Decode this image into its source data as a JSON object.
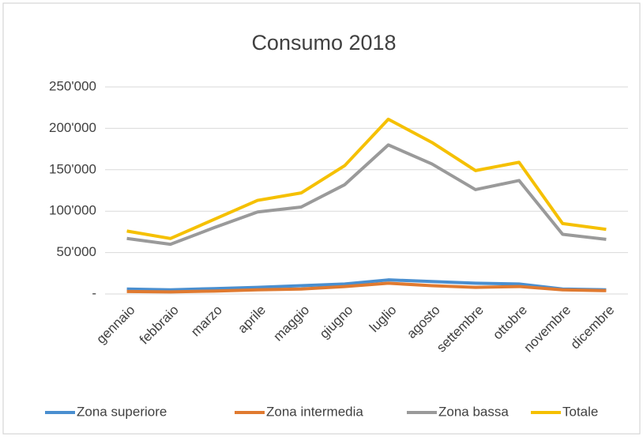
{
  "chart_data": {
    "type": "line",
    "title": "Consumo 2018",
    "categories": [
      "gennaio",
      "febbraio",
      "marzo",
      "aprile",
      "maggio",
      "giugno",
      "luglio",
      "agosto",
      "settembre",
      "ottobre",
      "novembre",
      "dicembre"
    ],
    "series": [
      {
        "name": "Zona superiore",
        "color": "#4a8fd0",
        "values": [
          6000,
          5000,
          6500,
          8000,
          10000,
          12000,
          17000,
          15000,
          13000,
          12000,
          6000,
          5000
        ]
      },
      {
        "name": "Zona intermedia",
        "color": "#e07a30",
        "values": [
          3000,
          2500,
          3500,
          5000,
          6000,
          9000,
          13000,
          10000,
          8000,
          9000,
          5000,
          4000
        ]
      },
      {
        "name": "Zona bassa",
        "color": "#9a9a9a",
        "values": [
          67000,
          60000,
          80000,
          99000,
          105000,
          132000,
          180000,
          157000,
          126000,
          137000,
          72000,
          66000
        ]
      },
      {
        "name": "Totale",
        "color": "#f5c000",
        "values": [
          76000,
          67000,
          90000,
          113000,
          122000,
          155000,
          211000,
          183000,
          149000,
          159000,
          85000,
          78000
        ]
      }
    ],
    "ylim": [
      0,
      250000
    ],
    "yticks": [
      {
        "value": 0,
        "label": "-"
      },
      {
        "value": 50000,
        "label": "50'000"
      },
      {
        "value": 100000,
        "label": "100'000"
      },
      {
        "value": 150000,
        "label": "150'000"
      },
      {
        "value": 200000,
        "label": "200'000"
      },
      {
        "value": 250000,
        "label": "250'000"
      }
    ],
    "grid": true,
    "legend": "bottom"
  }
}
